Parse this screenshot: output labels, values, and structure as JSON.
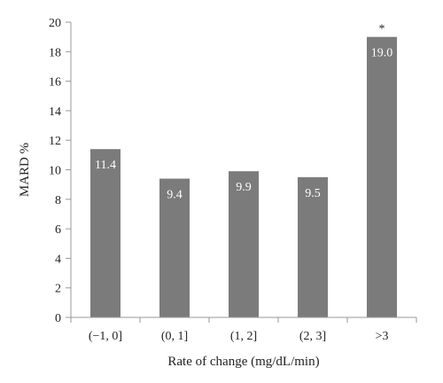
{
  "chart_data": {
    "type": "bar",
    "categories": [
      "(−1, 0]",
      "(0, 1]",
      "(1, 2]",
      "(2, 3]",
      ">3"
    ],
    "values": [
      11.4,
      9.4,
      9.9,
      9.5,
      19.0
    ],
    "data_labels": [
      "11.4",
      "9.4",
      "9.9",
      "9.5",
      "19.0"
    ],
    "annotations": [
      {
        "category": ">3",
        "text": "*"
      }
    ],
    "xlabel": "Rate of change (mg/dL/min)",
    "ylabel": "MARD %",
    "ylim": [
      0,
      20
    ],
    "yticks": [
      0,
      2,
      4,
      6,
      8,
      10,
      12,
      14,
      16,
      18,
      20
    ],
    "grid": false,
    "colors": {
      "bar": "#7b7b7b",
      "axis": "#999999",
      "label_text": "#ffffff"
    }
  }
}
